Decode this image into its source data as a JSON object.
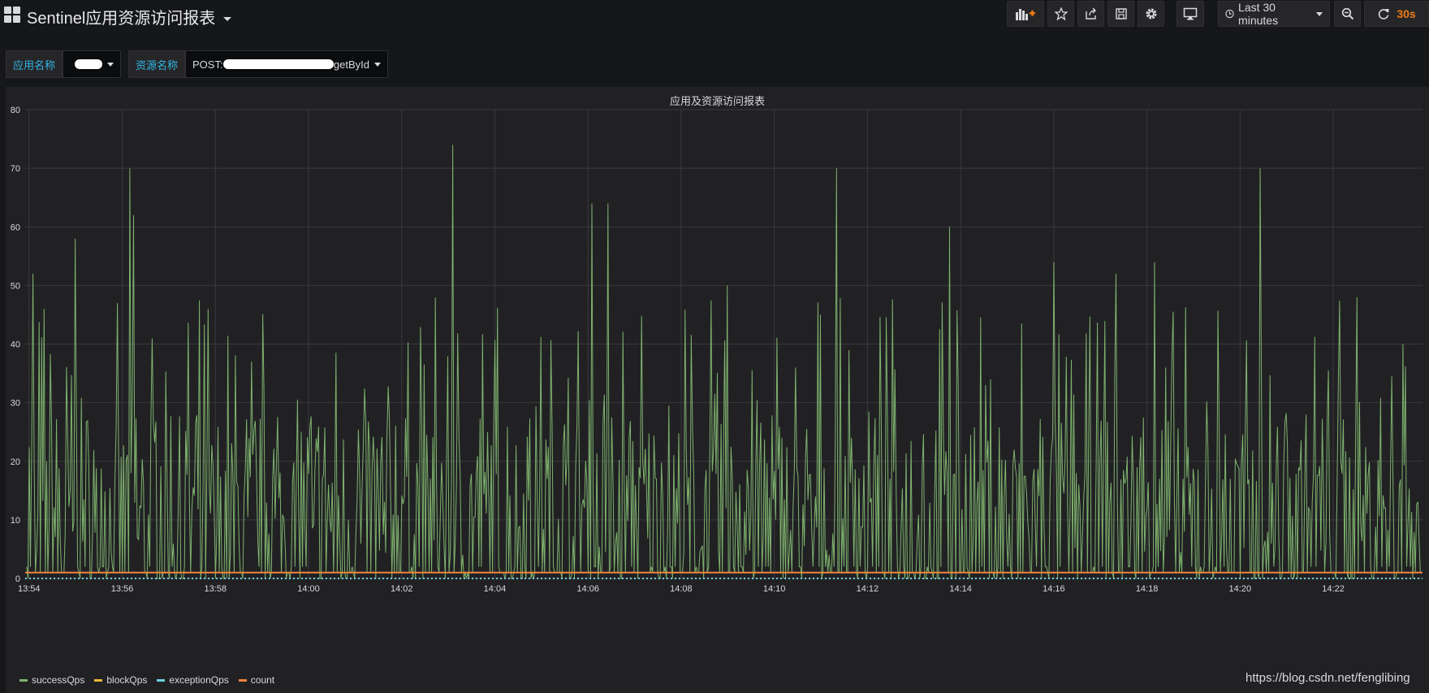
{
  "header": {
    "title": "Sentinel应用资源访问报表",
    "time_range": "Last 30 minutes",
    "refresh_interval": "30s"
  },
  "variables": {
    "app": {
      "label": "应用名称",
      "value": ""
    },
    "resource": {
      "label": "资源名称",
      "value_prefix": "POST:",
      "value_suffix": "getById"
    }
  },
  "panel": {
    "title": "应用及资源访问报表"
  },
  "chart_data": {
    "type": "line",
    "title": "应用及资源访问报表",
    "xlabel": "",
    "ylabel": "",
    "x_ticks": [
      "13:54",
      "13:56",
      "13:58",
      "14:00",
      "14:02",
      "14:04",
      "14:06",
      "14:08",
      "14:10",
      "14:12",
      "14:14",
      "14:16",
      "14:18",
      "14:20",
      "14:22"
    ],
    "y_ticks": [
      0,
      10,
      20,
      30,
      40,
      50,
      60,
      70,
      80
    ],
    "ylim": [
      0,
      80
    ],
    "xlim": [
      "13:53:55",
      "14:23:55"
    ],
    "grid": true,
    "legend": "bottom-left",
    "colors": {
      "successQps": "#7eb26d",
      "blockQps": "#eab839",
      "exceptionQps": "#6ed0e0",
      "count": "#ef843c"
    },
    "series": [
      {
        "name": "successQps",
        "peaks": [
          [
            "13:54:05",
            52
          ],
          [
            "13:55:00",
            58
          ],
          [
            "13:56:10",
            70
          ],
          [
            "13:56:15",
            62
          ],
          [
            "13:57:50",
            46
          ],
          [
            "14:03:05",
            74
          ],
          [
            "14:06:05",
            64
          ],
          [
            "14:06:25",
            64
          ],
          [
            "14:09:00",
            50
          ],
          [
            "14:11:20",
            70
          ],
          [
            "14:13:45",
            60
          ],
          [
            "14:16:00",
            54
          ],
          [
            "14:17:20",
            52
          ],
          [
            "14:18:10",
            54
          ],
          [
            "14:20:25",
            70
          ],
          [
            "14:22:30",
            48
          ],
          [
            "14:23:30",
            40
          ]
        ],
        "typical_range": [
          0,
          40
        ]
      },
      {
        "name": "blockQps",
        "values_constant": 0
      },
      {
        "name": "exceptionQps",
        "values_constant": 0
      },
      {
        "name": "count",
        "values_constant": 1
      }
    ]
  },
  "watermark": "https://blog.csdn.net/fenglibing"
}
